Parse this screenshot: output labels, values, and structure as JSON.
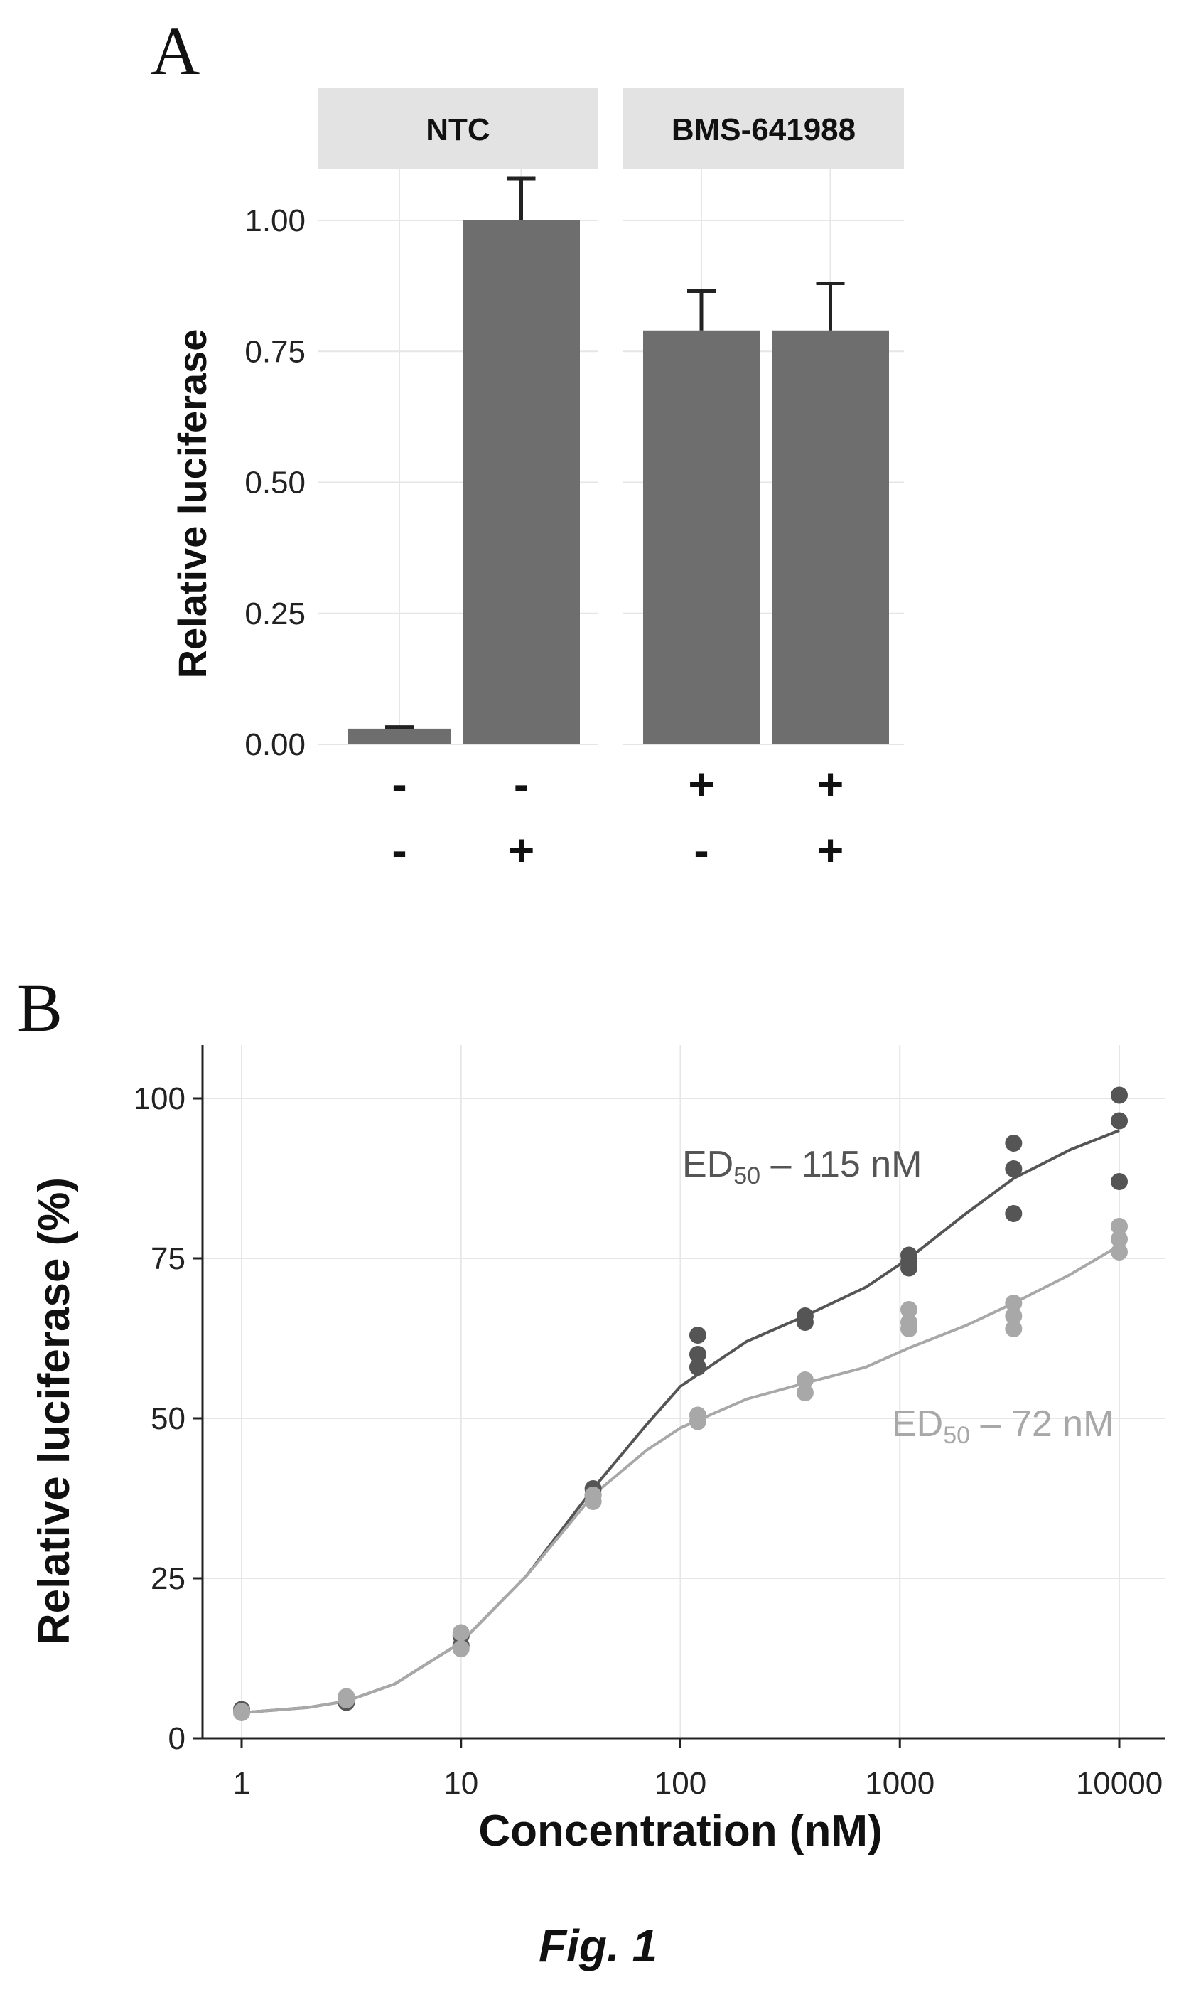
{
  "panels": {
    "a_label": "A",
    "b_label": "B"
  },
  "caption": "Fig. 1",
  "colors": {
    "bar": "#6e6e6e",
    "strip": "#e3e3e3",
    "dark_series": "#555555",
    "light_series": "#a8a8a8",
    "grid": "#e6e6e6"
  },
  "chart_data": [
    {
      "type": "bar",
      "ylabel": "Relative luciferase",
      "ylim": [
        0,
        1.0
      ],
      "yticks": [
        "0.00",
        "0.25",
        "0.50",
        "0.75",
        "1.00"
      ],
      "facets": [
        {
          "name": "NTC",
          "bars": [
            {
              "value": 0.03,
              "error": 0.003,
              "row1": "-",
              "row2": "-"
            },
            {
              "value": 1.0,
              "error": 0.08,
              "row1": "-",
              "row2": "+"
            }
          ]
        },
        {
          "name": "BMS-641988",
          "bars": [
            {
              "value": 0.79,
              "error": 0.075,
              "row1": "+",
              "row2": "-"
            },
            {
              "value": 0.79,
              "error": 0.09,
              "row1": "+",
              "row2": "+"
            }
          ]
        }
      ],
      "grid": true
    },
    {
      "type": "scatter",
      "xlabel": "Concentration (nM)",
      "ylabel": "Relative luciferase (%)",
      "xscale": "log",
      "xlim": [
        1,
        10000
      ],
      "ylim": [
        0,
        100
      ],
      "xticks": [
        "1",
        "10",
        "100",
        "1000",
        "10000"
      ],
      "yticks": [
        "0",
        "25",
        "50",
        "75",
        "100"
      ],
      "grid": true,
      "series": [
        {
          "annotation": "ED50 – 115 nM",
          "annotation_main": "ED",
          "annotation_sub": "50",
          "annotation_rest": " – 115 nM",
          "color": "#555555",
          "points": [
            [
              1,
              4.5
            ],
            [
              1,
              4.2
            ],
            [
              3,
              6.2
            ],
            [
              3,
              5.6
            ],
            [
              10,
              16.0
            ],
            [
              10,
              14.5
            ],
            [
              40,
              39.0
            ],
            [
              40,
              38.0
            ],
            [
              120,
              63.0
            ],
            [
              120,
              60.0
            ],
            [
              120,
              58.0
            ],
            [
              370,
              66.0
            ],
            [
              370,
              65.0
            ],
            [
              1100,
              75.5
            ],
            [
              1100,
              74.5
            ],
            [
              1100,
              73.5
            ],
            [
              3300,
              93.0
            ],
            [
              3300,
              89.0
            ],
            [
              3300,
              82.0
            ],
            [
              10000,
              100.5
            ],
            [
              10000,
              96.5
            ],
            [
              10000,
              87.0
            ]
          ],
          "curve": [
            [
              1,
              4.0
            ],
            [
              2,
              4.8
            ],
            [
              3,
              5.8
            ],
            [
              5,
              8.5
            ],
            [
              10,
              15.0
            ],
            [
              20,
              25.5
            ],
            [
              40,
              39.0
            ],
            [
              70,
              49.0
            ],
            [
              100,
              55.0
            ],
            [
              200,
              62.0
            ],
            [
              370,
              66.0
            ],
            [
              700,
              70.5
            ],
            [
              1100,
              75.0
            ],
            [
              2000,
              82.0
            ],
            [
              3300,
              87.5
            ],
            [
              6000,
              92.0
            ],
            [
              10000,
              95.0
            ]
          ]
        },
        {
          "annotation": "ED50 – 72 nM",
          "annotation_main": "ED",
          "annotation_sub": "50",
          "annotation_rest": " – 72 nM",
          "color": "#a8a8a8",
          "points": [
            [
              1,
              4.2
            ],
            [
              1,
              4.0
            ],
            [
              3,
              6.5
            ],
            [
              3,
              6.0
            ],
            [
              10,
              16.5
            ],
            [
              10,
              14.0
            ],
            [
              40,
              38.0
            ],
            [
              40,
              37.0
            ],
            [
              120,
              50.5
            ],
            [
              120,
              49.5
            ],
            [
              370,
              56.0
            ],
            [
              370,
              54.0
            ],
            [
              1100,
              67.0
            ],
            [
              1100,
              65.0
            ],
            [
              1100,
              64.0
            ],
            [
              3300,
              68.0
            ],
            [
              3300,
              66.0
            ],
            [
              3300,
              64.0
            ],
            [
              10000,
              80.0
            ],
            [
              10000,
              78.0
            ],
            [
              10000,
              76.0
            ]
          ],
          "curve": [
            [
              1,
              4.0
            ],
            [
              2,
              4.8
            ],
            [
              3,
              5.8
            ],
            [
              5,
              8.5
            ],
            [
              10,
              15.0
            ],
            [
              20,
              25.5
            ],
            [
              40,
              38.0
            ],
            [
              70,
              45.0
            ],
            [
              100,
              48.5
            ],
            [
              200,
              53.0
            ],
            [
              370,
              55.5
            ],
            [
              700,
              58.0
            ],
            [
              1100,
              61.0
            ],
            [
              2000,
              64.5
            ],
            [
              3300,
              68.0
            ],
            [
              6000,
              72.5
            ],
            [
              10000,
              77.0
            ]
          ]
        }
      ]
    }
  ]
}
